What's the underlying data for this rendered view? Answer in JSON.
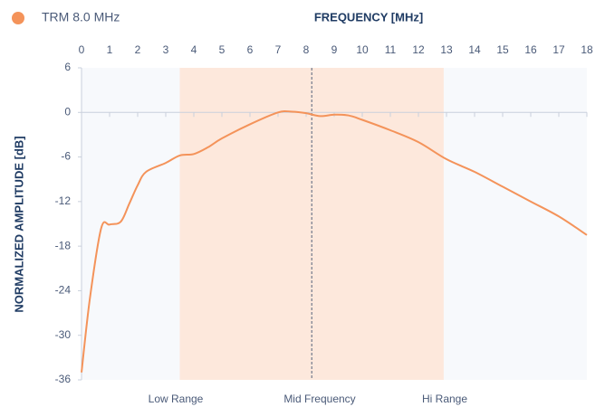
{
  "chart_data": {
    "type": "line",
    "legend_label": "TRM 8.0 MHz",
    "x_axis_title": "FREQUENCY [MHz]",
    "y_axis_title": "NORMALIZED AMPLITUDE [dB]",
    "x": [
      0,
      0.3,
      0.7,
      1,
      1.4,
      1.7,
      2,
      2.3,
      3,
      3.5,
      4,
      4.5,
      5,
      6,
      7,
      7.5,
      8,
      8.5,
      9,
      9.5,
      10,
      11,
      12,
      13,
      14,
      15,
      16,
      17,
      18
    ],
    "series": [
      {
        "name": "TRM 8.0 MHz",
        "color": "#f4935a",
        "values": [
          -35,
          -25,
          -15.6,
          -15.1,
          -14.7,
          -12.3,
          -9.8,
          -8,
          -6.8,
          -5.8,
          -5.6,
          -4.7,
          -3.5,
          -1.6,
          0,
          0.1,
          -0.1,
          -0.5,
          -0.3,
          -0.4,
          -1,
          -2.4,
          -4,
          -6.3,
          -8,
          -10,
          -12,
          -14,
          -16.5
        ]
      }
    ],
    "xlim": [
      0,
      18
    ],
    "xticks": [
      0,
      1,
      2,
      3,
      4,
      5,
      6,
      7,
      8,
      9,
      10,
      11,
      12,
      13,
      14,
      15,
      16,
      17,
      18
    ],
    "ylim": [
      -36,
      6
    ],
    "yticks": [
      6,
      0,
      -6,
      -12,
      -18,
      -24,
      -30,
      -36
    ],
    "shaded_range": [
      3.5,
      12.9
    ],
    "shade_color": "#fde8dc",
    "mid_line": 8.2,
    "annotations": [
      "Low Range",
      "Mid Frequency",
      "Hi Range"
    ]
  }
}
